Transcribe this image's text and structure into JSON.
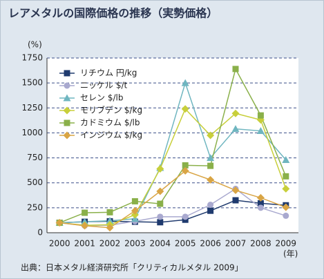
{
  "chart_data": {
    "type": "line",
    "title": "レアメタルの国際価格の推移（実勢価格）",
    "y_unit": "(%)",
    "x_unit": "(年)",
    "source": "出典：日本メタル経済研究所「クリティカルメタル 2009」",
    "categories": [
      "2000",
      "2001",
      "2002",
      "2003",
      "2004",
      "2005",
      "2006",
      "2007",
      "2008",
      "2009"
    ],
    "ylim": [
      0,
      1750
    ],
    "yticks": [
      0,
      250,
      500,
      750,
      1000,
      1250,
      1500,
      1750
    ],
    "grid": true,
    "legend": "upper left",
    "series": [
      {
        "name": "リチウム 円/kg",
        "color": "#1f3a6e",
        "marker": "square",
        "values": [
          100,
          110,
          115,
          110,
          105,
          130,
          220,
          325,
          295,
          275
        ]
      },
      {
        "name": "ニッケル $/t",
        "color": "#a9a9cf",
        "marker": "circle",
        "values": [
          100,
          70,
          75,
          115,
          160,
          160,
          280,
          440,
          250,
          170
        ]
      },
      {
        "name": "セレン $/lb",
        "color": "#6fb6c0",
        "marker": "triangle",
        "values": [
          100,
          110,
          120,
          140,
          650,
          1500,
          750,
          1040,
          1020,
          730
        ]
      },
      {
        "name": "モリブデン $/kg",
        "color": "#c8cf3a",
        "marker": "diamond",
        "values": [
          100,
          75,
          80,
          180,
          640,
          1240,
          975,
          1195,
          1130,
          440
        ]
      },
      {
        "name": "カドミウム $/lb",
        "color": "#8ab04a",
        "marker": "square",
        "values": [
          100,
          200,
          205,
          315,
          290,
          675,
          670,
          1640,
          1175,
          565
        ]
      },
      {
        "name": "インジウム $/kg",
        "color": "#d9a545",
        "marker": "diamond",
        "values": [
          100,
          70,
          50,
          220,
          415,
          620,
          530,
          425,
          350,
          255
        ]
      }
    ]
  }
}
